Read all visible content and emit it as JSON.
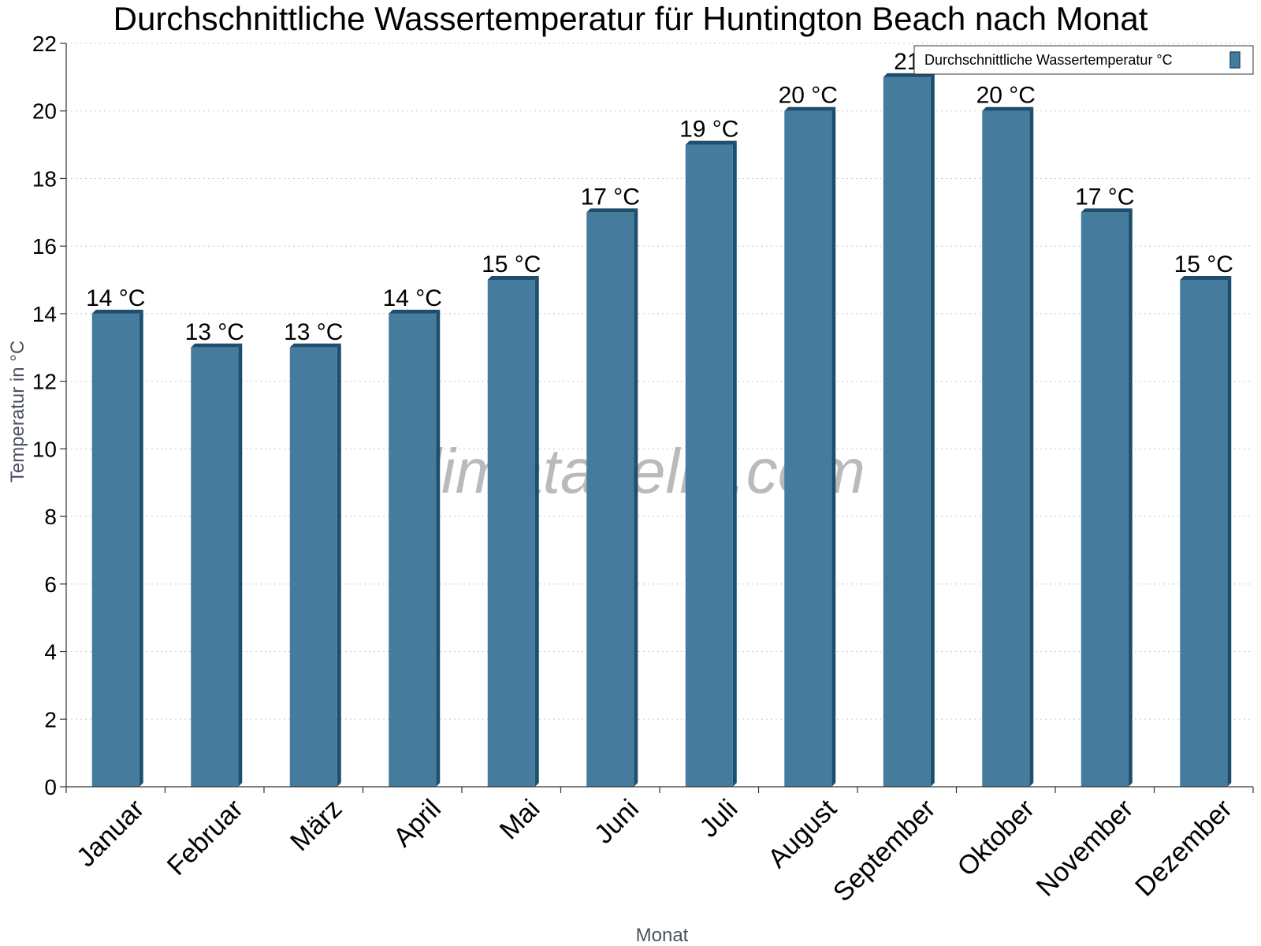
{
  "chart_data": {
    "type": "bar",
    "title": "Durchschnittliche Wassertemperatur für Huntington Beach nach Monat",
    "xlabel": "Monat",
    "ylabel": "Temperatur in °C",
    "categories": [
      "Januar",
      "Februar",
      "März",
      "April",
      "Mai",
      "Juni",
      "Juli",
      "August",
      "September",
      "Oktober",
      "November",
      "Dezember"
    ],
    "series": [
      {
        "name": "Durchschnittliche Wassertemperatur °C",
        "values": [
          14,
          13,
          13,
          14,
          15,
          17,
          19,
          20,
          21,
          20,
          17,
          15
        ],
        "data_labels": [
          "14 °C",
          "13 °C",
          "13 °C",
          "14 °C",
          "15 °C",
          "17 °C",
          "19 °C",
          "20 °C",
          "21",
          "20 °C",
          "17 °C",
          "15 °C"
        ],
        "color": "#457b9d",
        "edge_color": "#1d4e6e"
      }
    ],
    "ylim": [
      0,
      22
    ],
    "yticks": [
      0,
      2,
      4,
      6,
      8,
      10,
      12,
      14,
      16,
      18,
      20,
      22
    ],
    "grid": true,
    "legend_position": "top-right",
    "watermark": "klimatabelle.com"
  }
}
